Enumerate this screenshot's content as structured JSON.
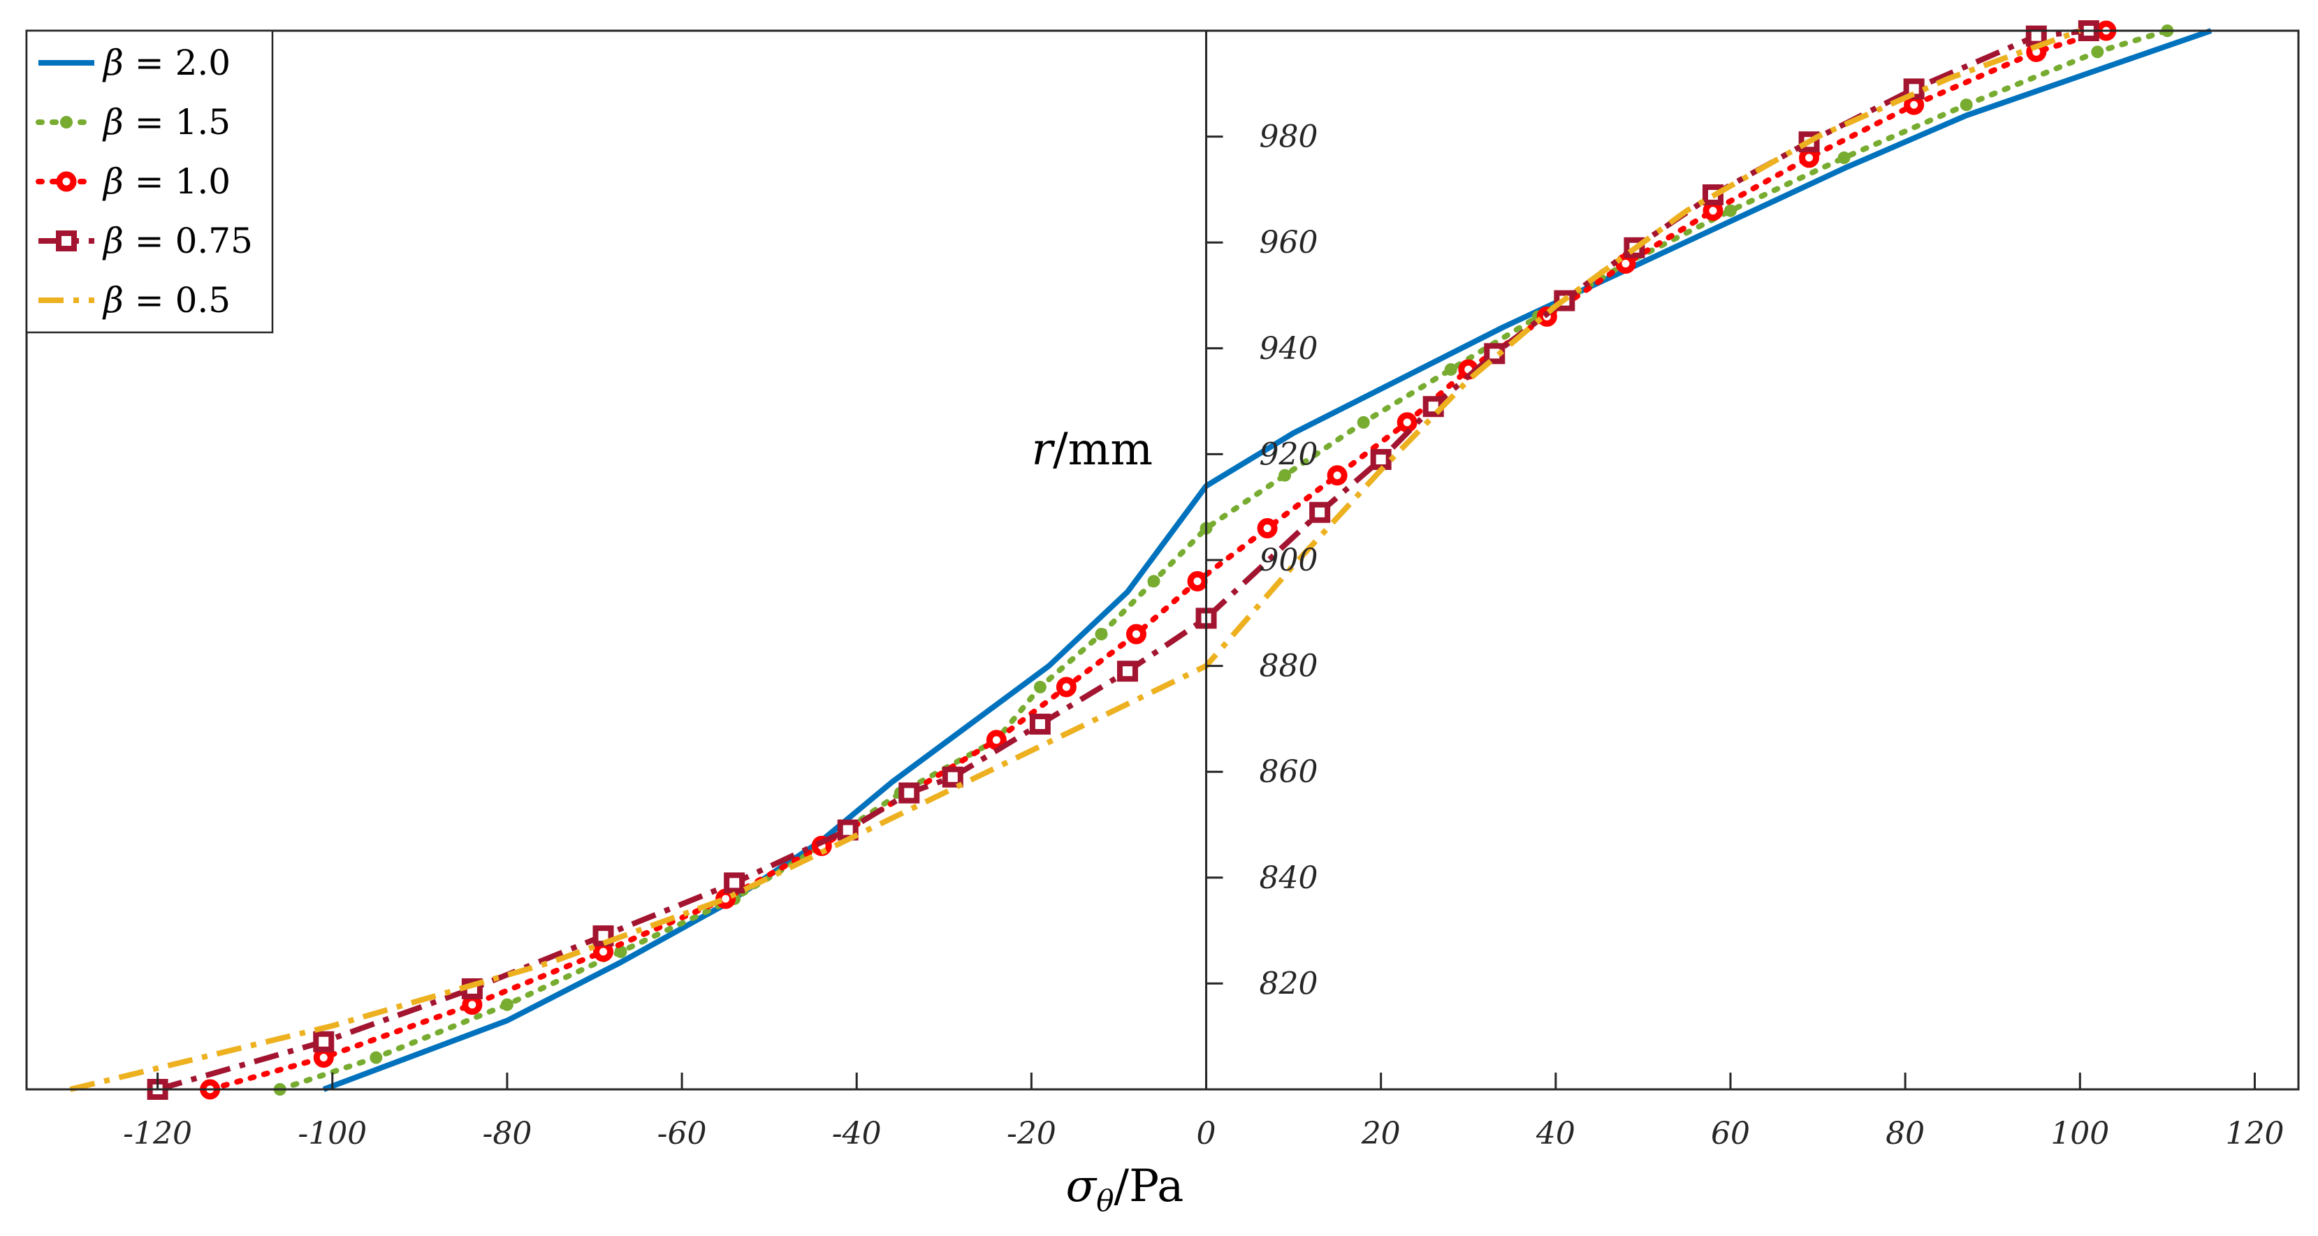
{
  "chart_data": {
    "type": "line",
    "title": "",
    "xlabel": "σθ/Pa",
    "xlabel_main": "σ",
    "xlabel_sub": "θ",
    "xlabel_unit": "/Pa",
    "ylabel": "r/mm",
    "ylabel_var": "r",
    "ylabel_unit": "/mm",
    "xlim": [
      -135,
      125
    ],
    "ylim": [
      800,
      1000
    ],
    "xticks": [
      -120,
      -100,
      -80,
      -60,
      -40,
      -20,
      0,
      20,
      40,
      60,
      80,
      100,
      120
    ],
    "yticks": [
      820,
      840,
      860,
      880,
      900,
      920,
      940,
      960,
      980
    ],
    "xtick_labels": [
      "-120",
      "-100",
      "-80",
      "-60",
      "-40",
      "-20",
      "0",
      "20",
      "40",
      "60",
      "80",
      "100",
      "120"
    ],
    "ytick_labels": [
      "820",
      "840",
      "860",
      "880",
      "900",
      "920",
      "940",
      "960",
      "980"
    ],
    "legend_position": "top-left",
    "series": [
      {
        "name": "β = 2.0",
        "label_var": "β",
        "label_value": "= 2.0",
        "color": "#0072BD",
        "style": "solid",
        "marker": "none",
        "x": [
          -101,
          -80,
          -67,
          -55,
          -44,
          -36,
          -27,
          -18,
          -9,
          0,
          10,
          22,
          34,
          47,
          60,
          73,
          87,
          101,
          115
        ],
        "y": [
          800,
          813,
          824,
          835,
          847,
          858,
          869,
          880,
          894,
          914,
          924,
          934,
          944,
          954,
          964,
          974,
          984,
          992,
          1000
        ]
      },
      {
        "name": "β = 1.5",
        "label_var": "β",
        "label_value": "= 1.5",
        "color": "#77AC30",
        "style": "dotted",
        "marker": "dot",
        "x": [
          -106,
          -95,
          -80,
          -67,
          -54,
          -44,
          -35,
          -24,
          -19,
          -12,
          -6,
          0,
          9,
          18,
          28,
          38,
          48,
          60,
          73,
          87,
          102,
          110
        ],
        "y": [
          800,
          806,
          816,
          826,
          836,
          846,
          856,
          866,
          876,
          886,
          896,
          906,
          916,
          926,
          936,
          946,
          956,
          966,
          976,
          986,
          996,
          1000
        ]
      },
      {
        "name": "β = 1.0",
        "label_var": "β",
        "label_value": "= 1.0",
        "color": "#FF0000",
        "style": "dotted",
        "marker": "circle",
        "x": [
          -114,
          -101,
          -84,
          -69,
          -55,
          -44,
          -34,
          -24,
          -16,
          -8,
          -1,
          7,
          15,
          23,
          30,
          39,
          48,
          58,
          69,
          81,
          95,
          103
        ],
        "y": [
          800,
          806,
          816,
          826,
          836,
          846,
          856,
          866,
          876,
          886,
          896,
          906,
          916,
          926,
          936,
          946,
          956,
          966,
          976,
          986,
          996,
          1000
        ]
      },
      {
        "name": "β = 0.75",
        "label_var": "β",
        "label_value": "= 0.75",
        "color": "#A2142F",
        "style": "dashdot",
        "marker": "square",
        "x": [
          -120,
          -101,
          -84,
          -69,
          -54,
          -41,
          -34,
          -29,
          -19,
          -9,
          0,
          13,
          20,
          26,
          33,
          41,
          49,
          58,
          69,
          81,
          95,
          101
        ],
        "y": [
          800,
          809,
          819,
          829,
          839,
          849,
          856,
          859,
          869,
          879,
          889,
          909,
          919,
          929,
          939,
          949,
          959,
          969,
          979,
          989,
          999,
          1000
        ]
      },
      {
        "name": "β = 0.5",
        "label_var": "β",
        "label_value": "= 0.5",
        "color": "#EDB120",
        "style": "dashdot",
        "marker": "none",
        "x": [
          -130,
          -100,
          -75,
          -55,
          -40,
          -25,
          0,
          10,
          20,
          30,
          40,
          55,
          70,
          85,
          100
        ],
        "y": [
          800,
          812,
          824,
          836,
          848,
          860,
          880,
          899,
          917,
          934,
          948,
          966,
          980,
          991,
          1000
        ]
      }
    ]
  }
}
